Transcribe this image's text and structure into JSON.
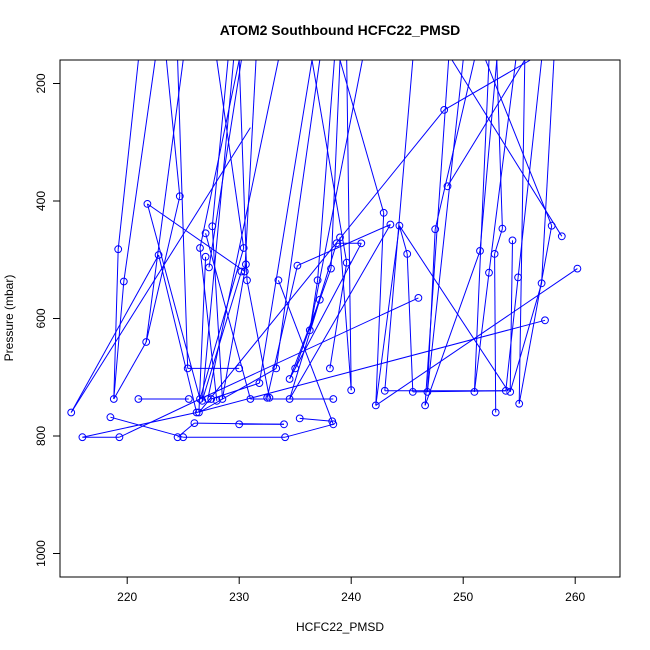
{
  "chart_data": {
    "type": "line",
    "title": "ATOM2 Southbound HCFC22_PMSD",
    "xlabel": "HCFC22_PMSD",
    "ylabel": "Pressure (mbar)",
    "xlim": [
      214,
      264
    ],
    "ylim": [
      1040,
      160
    ],
    "y_reversed": true,
    "x_ticks": [
      220,
      230,
      240,
      250,
      260
    ],
    "y_ticks": [
      200,
      400,
      600,
      800,
      1000
    ],
    "grid": false,
    "legend": "none",
    "series_color": "#0000ff",
    "marker": "open-circle",
    "points": [
      {
        "x": 215,
        "y": 760
      },
      {
        "x": 216,
        "y": 802
      },
      {
        "x": 218.5,
        "y": 768
      },
      {
        "x": 218.8,
        "y": 737
      },
      {
        "x": 219.2,
        "y": 482
      },
      {
        "x": 219.3,
        "y": 802
      },
      {
        "x": 219.7,
        "y": 537
      },
      {
        "x": 221,
        "y": 737
      },
      {
        "x": 221.7,
        "y": 640
      },
      {
        "x": 221.8,
        "y": 405
      },
      {
        "x": 222.8,
        "y": 492
      },
      {
        "x": 224.5,
        "y": 802
      },
      {
        "x": 224.7,
        "y": 392
      },
      {
        "x": 225,
        "y": 802
      },
      {
        "x": 225.4,
        "y": 685
      },
      {
        "x": 225.5,
        "y": 737
      },
      {
        "x": 226,
        "y": 778
      },
      {
        "x": 226.2,
        "y": 760
      },
      {
        "x": 226.4,
        "y": 760
      },
      {
        "x": 226.5,
        "y": 737
      },
      {
        "x": 226.5,
        "y": 480
      },
      {
        "x": 226.7,
        "y": 740
      },
      {
        "x": 227,
        "y": 455
      },
      {
        "x": 227,
        "y": 495
      },
      {
        "x": 227.2,
        "y": 737
      },
      {
        "x": 227.3,
        "y": 513
      },
      {
        "x": 227.5,
        "y": 737
      },
      {
        "x": 227.6,
        "y": 443
      },
      {
        "x": 228,
        "y": 740
      },
      {
        "x": 228.5,
        "y": 737
      },
      {
        "x": 230,
        "y": 685
      },
      {
        "x": 230,
        "y": 780
      },
      {
        "x": 230.2,
        "y": 520
      },
      {
        "x": 230.4,
        "y": 480
      },
      {
        "x": 230.5,
        "y": 520
      },
      {
        "x": 230.6,
        "y": 508
      },
      {
        "x": 230.7,
        "y": 535
      },
      {
        "x": 231,
        "y": 737
      },
      {
        "x": 231.8,
        "y": 710
      },
      {
        "x": 232.5,
        "y": 735
      },
      {
        "x": 232.7,
        "y": 735
      },
      {
        "x": 233.3,
        "y": 685
      },
      {
        "x": 233.5,
        "y": 535
      },
      {
        "x": 234,
        "y": 780
      },
      {
        "x": 234.1,
        "y": 802
      },
      {
        "x": 234.5,
        "y": 737
      },
      {
        "x": 234.5,
        "y": 703
      },
      {
        "x": 235,
        "y": 685
      },
      {
        "x": 235.2,
        "y": 510
      },
      {
        "x": 235.4,
        "y": 770
      },
      {
        "x": 236.3,
        "y": 620
      },
      {
        "x": 237,
        "y": 535
      },
      {
        "x": 237.2,
        "y": 568
      },
      {
        "x": 238.1,
        "y": 685
      },
      {
        "x": 238.2,
        "y": 515
      },
      {
        "x": 238.3,
        "y": 775
      },
      {
        "x": 238.4,
        "y": 780
      },
      {
        "x": 238.4,
        "y": 737
      },
      {
        "x": 238.7,
        "y": 472
      },
      {
        "x": 239,
        "y": 462
      },
      {
        "x": 239.6,
        "y": 505
      },
      {
        "x": 240,
        "y": 722
      },
      {
        "x": 240.9,
        "y": 472
      },
      {
        "x": 242.2,
        "y": 748
      },
      {
        "x": 242.9,
        "y": 420
      },
      {
        "x": 243,
        "y": 723
      },
      {
        "x": 243.5,
        "y": 440
      },
      {
        "x": 244.3,
        "y": 442
      },
      {
        "x": 245,
        "y": 490
      },
      {
        "x": 245.5,
        "y": 725
      },
      {
        "x": 246,
        "y": 565
      },
      {
        "x": 246.6,
        "y": 748
      },
      {
        "x": 246.8,
        "y": 725
      },
      {
        "x": 247.5,
        "y": 448
      },
      {
        "x": 248.3,
        "y": 245
      },
      {
        "x": 248.6,
        "y": 375
      },
      {
        "x": 251,
        "y": 725
      },
      {
        "x": 251.5,
        "y": 485
      },
      {
        "x": 252.3,
        "y": 522
      },
      {
        "x": 252.8,
        "y": 490
      },
      {
        "x": 252.9,
        "y": 760
      },
      {
        "x": 253.5,
        "y": 447
      },
      {
        "x": 253.8,
        "y": 723
      },
      {
        "x": 254.2,
        "y": 725
      },
      {
        "x": 254.4,
        "y": 467
      },
      {
        "x": 254.9,
        "y": 530
      },
      {
        "x": 255,
        "y": 745
      },
      {
        "x": 257,
        "y": 540
      },
      {
        "x": 257.3,
        "y": 603
      },
      {
        "x": 257.9,
        "y": 442
      },
      {
        "x": 258.8,
        "y": 460
      },
      {
        "x": 260.2,
        "y": 515
      }
    ],
    "segments": [
      [
        215,
        760,
        222.8,
        492
      ],
      [
        215,
        760,
        231,
        275
      ],
      [
        216,
        802,
        226.2,
        760
      ],
      [
        216,
        802,
        219.3,
        802
      ],
      [
        219.3,
        802,
        226.5,
        737
      ],
      [
        218.5,
        768,
        225,
        802
      ],
      [
        218.8,
        737,
        219.2,
        482
      ],
      [
        218.8,
        737,
        221.7,
        640
      ],
      [
        219.2,
        482,
        221,
        160
      ],
      [
        219.7,
        537,
        218.8,
        737
      ],
      [
        219.7,
        537,
        222.5,
        160
      ],
      [
        221.7,
        640,
        225,
        160
      ],
      [
        221,
        737,
        225.5,
        737
      ],
      [
        221.8,
        405,
        226.5,
        737
      ],
      [
        221.8,
        405,
        230.5,
        520
      ],
      [
        222.8,
        492,
        226.2,
        760
      ],
      [
        224.7,
        392,
        221.7,
        640
      ],
      [
        224.7,
        392,
        223.5,
        160
      ],
      [
        224.5,
        802,
        226,
        778
      ],
      [
        225.4,
        685,
        230,
        685
      ],
      [
        225.4,
        685,
        224.5,
        160
      ],
      [
        225,
        802,
        234.1,
        802
      ],
      [
        226,
        778,
        234,
        780
      ],
      [
        226.4,
        760,
        233.3,
        685
      ],
      [
        226.5,
        480,
        228,
        740
      ],
      [
        226.5,
        480,
        230,
        160
      ],
      [
        226.7,
        740,
        229.5,
        160
      ],
      [
        227,
        455,
        231,
        737
      ],
      [
        227,
        495,
        226.4,
        760
      ],
      [
        227.3,
        513,
        230.2,
        160
      ],
      [
        227.6,
        443,
        229,
        160
      ],
      [
        227.2,
        737,
        233.5,
        160
      ],
      [
        227.5,
        737,
        231.8,
        710
      ],
      [
        228.5,
        737,
        227.6,
        443
      ],
      [
        230,
        780,
        234,
        780
      ],
      [
        230.2,
        520,
        226.7,
        740
      ],
      [
        230.4,
        480,
        226.5,
        737
      ],
      [
        230.4,
        480,
        228,
        160
      ],
      [
        230.5,
        520,
        231.5,
        160
      ],
      [
        230.6,
        508,
        228.5,
        737
      ],
      [
        230.7,
        535,
        232.7,
        735
      ],
      [
        230.7,
        535,
        230,
        160
      ],
      [
        231,
        737,
        234.5,
        737
      ],
      [
        231.8,
        710,
        236.5,
        160
      ],
      [
        232.5,
        735,
        235.2,
        510
      ],
      [
        233.5,
        535,
        238.4,
        780
      ],
      [
        233.3,
        685,
        237.2,
        160
      ],
      [
        234.1,
        802,
        238.4,
        780
      ],
      [
        234.5,
        703,
        237.2,
        568
      ],
      [
        234.5,
        737,
        238.4,
        737
      ],
      [
        235,
        685,
        238.2,
        515
      ],
      [
        235.2,
        510,
        243.5,
        440
      ],
      [
        235.4,
        770,
        238.3,
        775
      ],
      [
        236.3,
        620,
        238.7,
        472
      ],
      [
        236.3,
        620,
        241,
        160
      ],
      [
        237,
        535,
        236.3,
        620
      ],
      [
        237,
        535,
        238.5,
        160
      ],
      [
        237.2,
        568,
        234.5,
        737
      ],
      [
        238.1,
        685,
        239.6,
        505
      ],
      [
        238.2,
        515,
        239,
        160
      ],
      [
        238.7,
        472,
        240.9,
        472
      ],
      [
        239,
        462,
        240,
        722
      ],
      [
        239.6,
        505,
        236.5,
        160
      ],
      [
        240,
        722,
        239.6,
        160
      ],
      [
        240.9,
        472,
        234.5,
        703
      ],
      [
        242.9,
        420,
        242.2,
        748
      ],
      [
        242.9,
        420,
        239,
        160
      ],
      [
        243,
        723,
        245.5,
        160
      ],
      [
        243.5,
        440,
        234.5,
        737
      ],
      [
        244.3,
        442,
        245,
        490
      ],
      [
        244.3,
        442,
        254,
        723
      ],
      [
        245,
        490,
        245.5,
        725
      ],
      [
        245.5,
        725,
        253.8,
        723
      ],
      [
        246,
        565,
        226.5,
        737
      ],
      [
        246.6,
        748,
        248.7,
        160
      ],
      [
        246.8,
        725,
        250,
        160
      ],
      [
        247.5,
        448,
        246.8,
        725
      ],
      [
        247.5,
        448,
        251,
        160
      ],
      [
        248.3,
        245,
        226.4,
        760
      ],
      [
        248.3,
        245,
        256,
        160
      ],
      [
        248.6,
        375,
        255.5,
        160
      ],
      [
        251,
        725,
        252.3,
        160
      ],
      [
        251.5,
        485,
        246.6,
        748
      ],
      [
        251.5,
        485,
        253,
        160
      ],
      [
        252.3,
        522,
        251,
        725
      ],
      [
        252.3,
        522,
        254.7,
        160
      ],
      [
        252.8,
        490,
        252.9,
        760
      ],
      [
        253.5,
        447,
        252.8,
        490
      ],
      [
        253.5,
        447,
        253,
        160
      ],
      [
        253.8,
        723,
        243,
        723
      ],
      [
        254.4,
        467,
        254.2,
        725
      ],
      [
        254.9,
        530,
        253.8,
        723
      ],
      [
        254.9,
        530,
        257,
        160
      ],
      [
        255,
        745,
        257.9,
        442
      ],
      [
        255,
        745,
        255.5,
        160
      ],
      [
        257,
        540,
        258.1,
        160
      ],
      [
        257.3,
        603,
        226.2,
        760
      ],
      [
        257.9,
        442,
        252,
        160
      ],
      [
        258.8,
        460,
        249,
        160
      ],
      [
        260.2,
        515,
        242.2,
        748
      ],
      [
        257,
        540,
        254.2,
        725
      ],
      [
        244.3,
        442,
        242.2,
        748
      ]
    ]
  }
}
